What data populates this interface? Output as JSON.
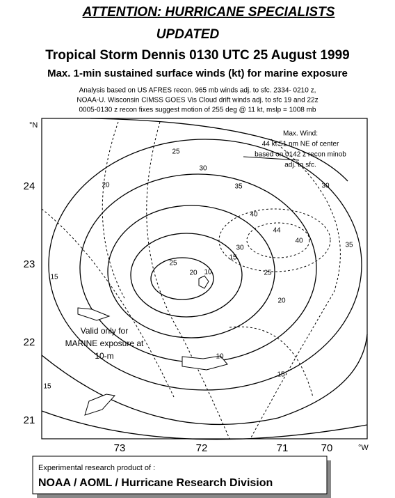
{
  "header": {
    "attention": "ATTENTION: HURRICANE SPECIALISTS",
    "updated": "UPDATED",
    "title": "Tropical Storm Dennis 0130 UTC 25 August 1999",
    "subtitle": "Max. 1-min sustained surface winds (kt) for marine exposure",
    "notes": [
      "Analysis based on US AFRES recon. 965 mb winds adj. to sfc. 2334- 0210  z,",
      "NOAA-U. Wisconsin CIMSS GOES Vis Cloud drift winds adj. to sfc 19 and 22z",
      "0005-0130 z recon fixes suggest motion  of  255 deg @ 11 kt, mslp = 1008 mb"
    ]
  },
  "map": {
    "lat_unit": "°N",
    "lon_unit": "°W",
    "lat_ticks": [
      "24",
      "23",
      "22",
      "21"
    ],
    "lon_ticks": [
      "73",
      "72",
      "71",
      "70"
    ],
    "max_wind": [
      "Max. Wind:",
      "44 kt  51 nm NE of center",
      "based on 0142  z recon minob",
      "adj. to sfc."
    ],
    "valid_note": [
      "Valid only for",
      "MARINE exposure at",
      "10-m"
    ],
    "contour_labels": [
      "25",
      "30",
      "20",
      "35",
      "40",
      "30",
      "44",
      "40",
      "35",
      "15",
      "25",
      "20",
      "10",
      "30",
      "15",
      "25",
      "20",
      "15",
      "10",
      "15"
    ]
  },
  "footer": {
    "line1": "Experimental research product of :",
    "line2": "NOAA / AOML / Hurricane Research Division"
  }
}
